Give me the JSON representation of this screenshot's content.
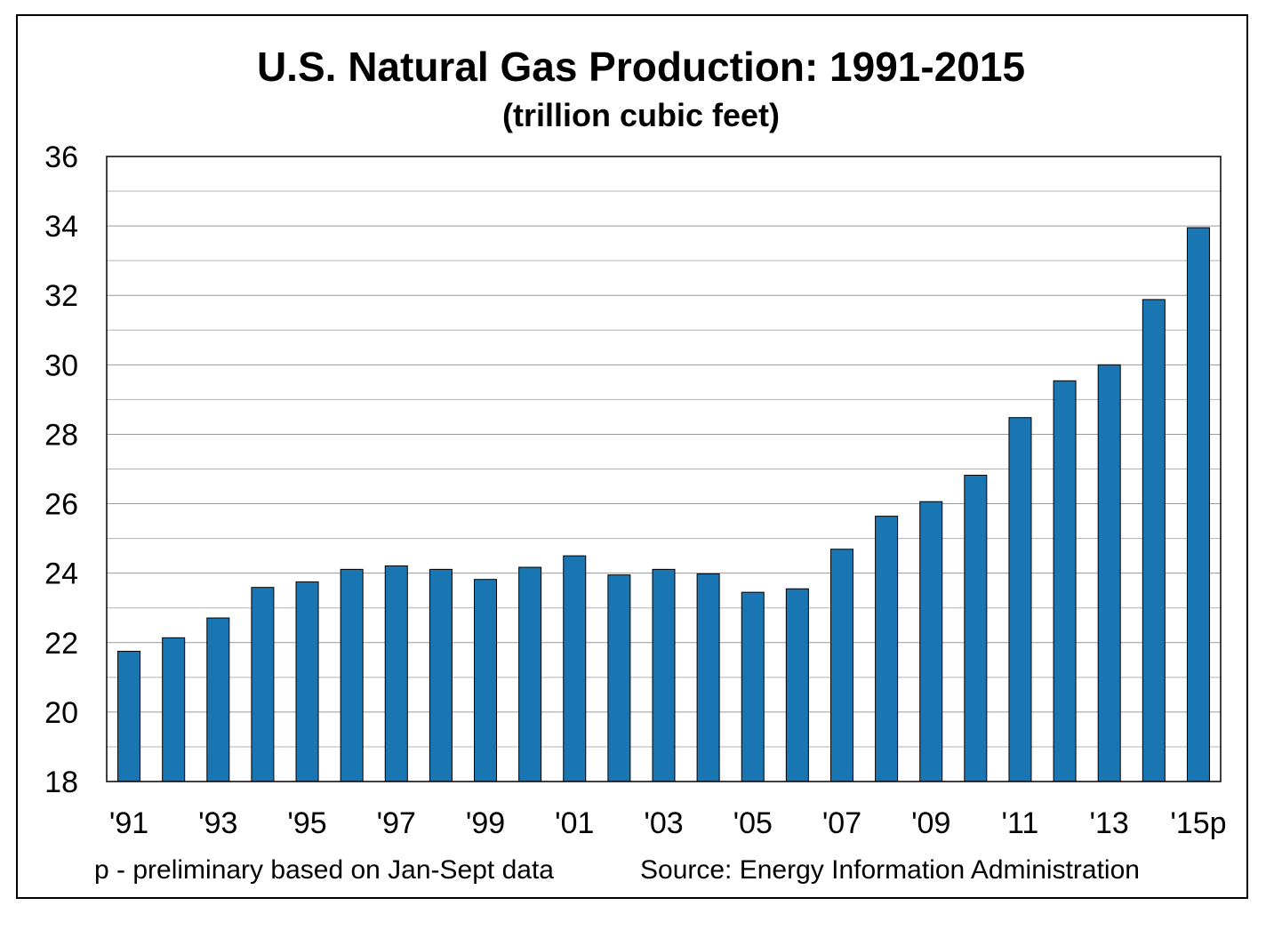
{
  "title": "U.S. Natural Gas Production:  1991-2015",
  "subtitle": "(trillion cubic feet)",
  "footnote": "p - preliminary based on Jan-Sept data",
  "source": "Source: Energy Information Administration",
  "colors": {
    "bar": "#1a75b3",
    "bar_edge": "#000000",
    "grid": "#b3b3b3"
  },
  "chart_data": {
    "type": "bar",
    "title": "U.S. Natural Gas Production:  1991-2015",
    "subtitle": "(trillion cubic feet)",
    "xlabel": "",
    "ylabel": "",
    "ylim": [
      18,
      36
    ],
    "yticks": [
      18,
      20,
      22,
      24,
      26,
      28,
      30,
      32,
      34,
      36
    ],
    "grid": true,
    "legend": "none",
    "categories": [
      "'91",
      "'92",
      "'93",
      "'94",
      "'95",
      "'96",
      "'97",
      "'98",
      "'99",
      "'00",
      "'01",
      "'02",
      "'03",
      "'04",
      "'05",
      "'06",
      "'07",
      "'08",
      "'09",
      "'10",
      "'11",
      "'12",
      "'13",
      "'14",
      "'15p"
    ],
    "tick_labels": [
      "'91",
      "",
      "'93",
      "",
      "'95",
      "",
      "'97",
      "",
      "'99",
      "",
      "'01",
      "",
      "'03",
      "",
      "'05",
      "",
      "'07",
      "",
      "'09",
      "",
      "'11",
      "",
      "'13",
      "",
      "'15p"
    ],
    "values": [
      21.75,
      22.14,
      22.71,
      23.59,
      23.75,
      24.11,
      24.21,
      24.11,
      23.82,
      24.17,
      24.5,
      23.95,
      24.11,
      23.98,
      23.45,
      23.55,
      24.69,
      25.64,
      26.06,
      26.82,
      28.48,
      29.54,
      30.0,
      31.88,
      33.95
    ]
  }
}
